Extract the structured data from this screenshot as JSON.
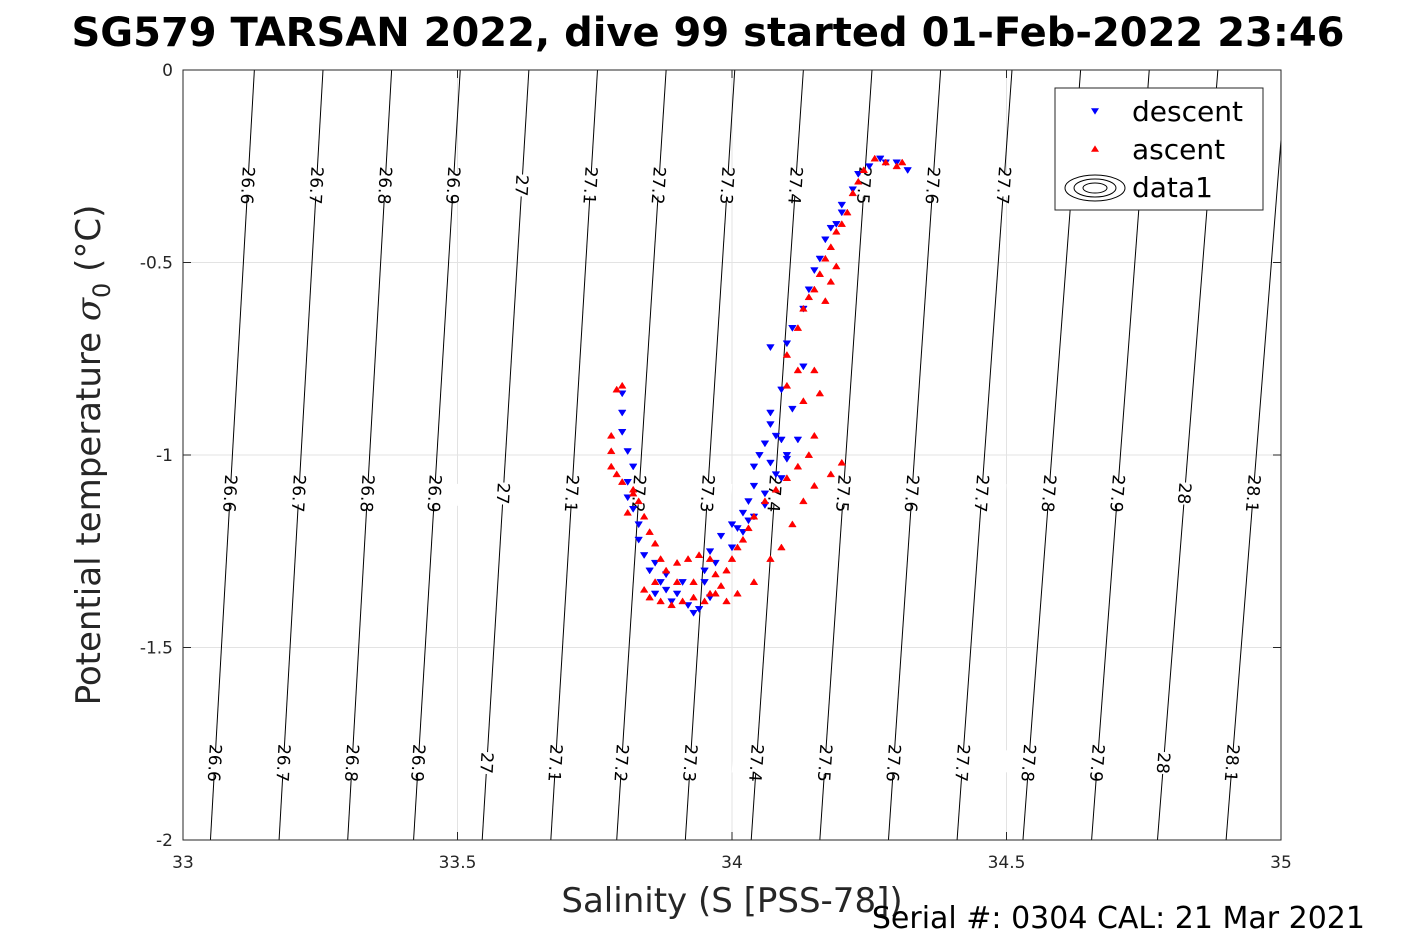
{
  "chart_data": {
    "type": "scatter",
    "title": "SG579 TARSAN 2022, dive 99 started 01-Feb-2022 23:46",
    "xlabel": "Salinity (S [PSS-78])",
    "ylabel": "Potential temperature σ₀ (°C)",
    "ylabel_main": "Potential temperature ",
    "ylabel_sigma": "σ",
    "ylabel_sub": "0",
    "ylabel_unit": " (°C)",
    "footer": "Serial #: 0304  CAL: 21 Mar 2021",
    "xlim": [
      33,
      35
    ],
    "ylim": [
      -2,
      0
    ],
    "xticks": [
      33,
      33.5,
      34,
      34.5,
      35
    ],
    "xtick_labels": [
      "33",
      "33.5",
      "34",
      "34.5",
      "35"
    ],
    "yticks": [
      0,
      -0.5,
      -1,
      -1.5,
      -2
    ],
    "ytick_labels": [
      "0",
      "-0.5",
      "-1",
      "-1.5",
      "-2"
    ],
    "grid": true,
    "legend_position": "top-right",
    "legend": [
      {
        "label": "descent",
        "marker": "triangle-down",
        "color": "#0000ff"
      },
      {
        "label": "ascent",
        "marker": "triangle-up",
        "color": "#ff0000"
      },
      {
        "label": "data1",
        "marker": "contour",
        "color": "#000000"
      }
    ],
    "contours": {
      "levels": [
        26.6,
        26.7,
        26.8,
        26.9,
        27,
        27.1,
        27.2,
        27.3,
        27.4,
        27.5,
        27.6,
        27.7,
        27.8,
        27.9,
        28,
        28.1
      ],
      "level_labels": [
        "26.6",
        "26.7",
        "26.8",
        "26.9",
        "27",
        "27.1",
        "27.2",
        "27.3",
        "27.4",
        "27.5",
        "27.6",
        "27.7",
        "27.8",
        "27.9",
        "28",
        "28.1"
      ],
      "salinity_at_theta_minus2": [
        33.05,
        33.175,
        33.3,
        33.42,
        33.545,
        33.67,
        33.79,
        33.915,
        34.035,
        34.16,
        34.285,
        34.41,
        34.53,
        34.655,
        34.775,
        34.9
      ],
      "salinity_at_theta_0": [
        33.13,
        33.255,
        33.38,
        33.505,
        33.63,
        33.755,
        33.88,
        34.005,
        34.13,
        34.255,
        34.38,
        34.51,
        34.635,
        34.76,
        34.885,
        35.01
      ],
      "label_rows_theta": [
        -0.3,
        -1.1,
        -1.8
      ]
    },
    "series": [
      {
        "name": "descent",
        "color": "#0000ff",
        "marker": "triangle-down",
        "points": [
          [
            34.28,
            -0.24
          ],
          [
            34.27,
            -0.23
          ],
          [
            34.3,
            -0.24
          ],
          [
            34.32,
            -0.26
          ],
          [
            34.25,
            -0.25
          ],
          [
            34.23,
            -0.27
          ],
          [
            34.22,
            -0.31
          ],
          [
            34.2,
            -0.35
          ],
          [
            34.19,
            -0.4
          ],
          [
            34.18,
            -0.41
          ],
          [
            34.2,
            -0.37
          ],
          [
            34.17,
            -0.44
          ],
          [
            34.16,
            -0.49
          ],
          [
            34.15,
            -0.52
          ],
          [
            34.14,
            -0.57
          ],
          [
            34.13,
            -0.62
          ],
          [
            34.11,
            -0.67
          ],
          [
            34.1,
            -0.71
          ],
          [
            34.07,
            -0.72
          ],
          [
            34.13,
            -0.77
          ],
          [
            34.09,
            -0.83
          ],
          [
            34.07,
            -0.89
          ],
          [
            34.11,
            -0.88
          ],
          [
            34.07,
            -0.92
          ],
          [
            34.08,
            -0.95
          ],
          [
            34.06,
            -0.97
          ],
          [
            34.09,
            -0.96
          ],
          [
            34.05,
            -1.0
          ],
          [
            34.1,
            -1.0
          ],
          [
            34.04,
            -1.03
          ],
          [
            34.07,
            -1.02
          ],
          [
            34.08,
            -1.05
          ],
          [
            34.04,
            -1.08
          ],
          [
            34.03,
            -1.12
          ],
          [
            34.02,
            -1.15
          ],
          [
            34.0,
            -1.18
          ],
          [
            33.98,
            -1.21
          ],
          [
            34.01,
            -1.19
          ],
          [
            34.03,
            -1.17
          ],
          [
            34.04,
            -1.16
          ],
          [
            33.96,
            -1.25
          ],
          [
            33.97,
            -1.28
          ],
          [
            33.95,
            -1.33
          ],
          [
            33.96,
            -1.37
          ],
          [
            33.94,
            -1.4
          ],
          [
            33.93,
            -1.41
          ],
          [
            33.92,
            -1.39
          ],
          [
            33.9,
            -1.36
          ],
          [
            33.89,
            -1.38
          ],
          [
            33.88,
            -1.35
          ],
          [
            33.86,
            -1.36
          ],
          [
            33.87,
            -1.33
          ],
          [
            33.85,
            -1.3
          ],
          [
            33.84,
            -1.26
          ],
          [
            33.83,
            -1.22
          ],
          [
            33.83,
            -1.18
          ],
          [
            33.82,
            -1.14
          ],
          [
            33.81,
            -1.11
          ],
          [
            33.81,
            -1.07
          ],
          [
            33.82,
            -1.03
          ],
          [
            33.81,
            -0.99
          ],
          [
            33.8,
            -0.94
          ],
          [
            33.8,
            -0.89
          ],
          [
            33.8,
            -0.84
          ],
          [
            33.86,
            -1.28
          ],
          [
            33.91,
            -1.33
          ],
          [
            33.88,
            -1.31
          ],
          [
            33.95,
            -1.3
          ],
          [
            34.0,
            -1.24
          ],
          [
            34.02,
            -1.2
          ],
          [
            34.06,
            -1.1
          ],
          [
            34.09,
            -1.06
          ],
          [
            34.06,
            -1.13
          ],
          [
            34.1,
            -1.01
          ],
          [
            34.12,
            -0.96
          ]
        ]
      },
      {
        "name": "ascent",
        "color": "#ff0000",
        "marker": "triangle-up",
        "points": [
          [
            34.26,
            -0.23
          ],
          [
            34.28,
            -0.24
          ],
          [
            34.3,
            -0.25
          ],
          [
            34.31,
            -0.24
          ],
          [
            34.24,
            -0.26
          ],
          [
            34.23,
            -0.29
          ],
          [
            34.22,
            -0.32
          ],
          [
            34.21,
            -0.37
          ],
          [
            34.2,
            -0.4
          ],
          [
            34.19,
            -0.42
          ],
          [
            34.18,
            -0.46
          ],
          [
            34.17,
            -0.49
          ],
          [
            34.16,
            -0.53
          ],
          [
            34.15,
            -0.57
          ],
          [
            34.14,
            -0.59
          ],
          [
            34.13,
            -0.62
          ],
          [
            34.19,
            -0.51
          ],
          [
            34.18,
            -0.55
          ],
          [
            34.17,
            -0.6
          ],
          [
            34.12,
            -0.67
          ],
          [
            34.1,
            -0.74
          ],
          [
            34.12,
            -0.78
          ],
          [
            34.15,
            -0.78
          ],
          [
            34.16,
            -0.84
          ],
          [
            34.13,
            -0.86
          ],
          [
            34.1,
            -0.82
          ],
          [
            34.15,
            -0.95
          ],
          [
            34.14,
            -1.0
          ],
          [
            34.12,
            -1.03
          ],
          [
            34.1,
            -1.06
          ],
          [
            34.08,
            -1.09
          ],
          [
            34.06,
            -1.12
          ],
          [
            34.04,
            -1.16
          ],
          [
            34.03,
            -1.19
          ],
          [
            34.02,
            -1.22
          ],
          [
            34.01,
            -1.24
          ],
          [
            34.0,
            -1.27
          ],
          [
            33.99,
            -1.3
          ],
          [
            33.98,
            -1.34
          ],
          [
            33.97,
            -1.36
          ],
          [
            33.95,
            -1.38
          ],
          [
            33.93,
            -1.37
          ],
          [
            33.91,
            -1.38
          ],
          [
            33.89,
            -1.39
          ],
          [
            33.87,
            -1.38
          ],
          [
            33.85,
            -1.37
          ],
          [
            33.84,
            -1.35
          ],
          [
            33.86,
            -1.33
          ],
          [
            33.88,
            -1.3
          ],
          [
            33.9,
            -1.28
          ],
          [
            33.92,
            -1.27
          ],
          [
            33.94,
            -1.26
          ],
          [
            33.96,
            -1.27
          ],
          [
            33.97,
            -1.31
          ],
          [
            33.93,
            -1.33
          ],
          [
            33.9,
            -1.33
          ],
          [
            33.87,
            -1.27
          ],
          [
            33.86,
            -1.23
          ],
          [
            33.85,
            -1.2
          ],
          [
            33.84,
            -1.16
          ],
          [
            33.83,
            -1.12
          ],
          [
            33.82,
            -1.09
          ],
          [
            33.8,
            -1.07
          ],
          [
            33.79,
            -1.05
          ],
          [
            33.78,
            -1.03
          ],
          [
            33.78,
            -0.99
          ],
          [
            33.78,
            -0.95
          ],
          [
            33.79,
            -0.83
          ],
          [
            33.8,
            -0.82
          ],
          [
            33.82,
            -1.1
          ],
          [
            33.81,
            -1.15
          ],
          [
            33.96,
            -1.36
          ],
          [
            33.99,
            -1.38
          ],
          [
            34.01,
            -1.36
          ],
          [
            34.04,
            -1.33
          ],
          [
            34.07,
            -1.27
          ],
          [
            34.09,
            -1.24
          ],
          [
            34.11,
            -1.18
          ],
          [
            34.13,
            -1.12
          ],
          [
            34.15,
            -1.08
          ],
          [
            34.18,
            -1.05
          ],
          [
            34.2,
            -1.02
          ]
        ]
      }
    ]
  }
}
